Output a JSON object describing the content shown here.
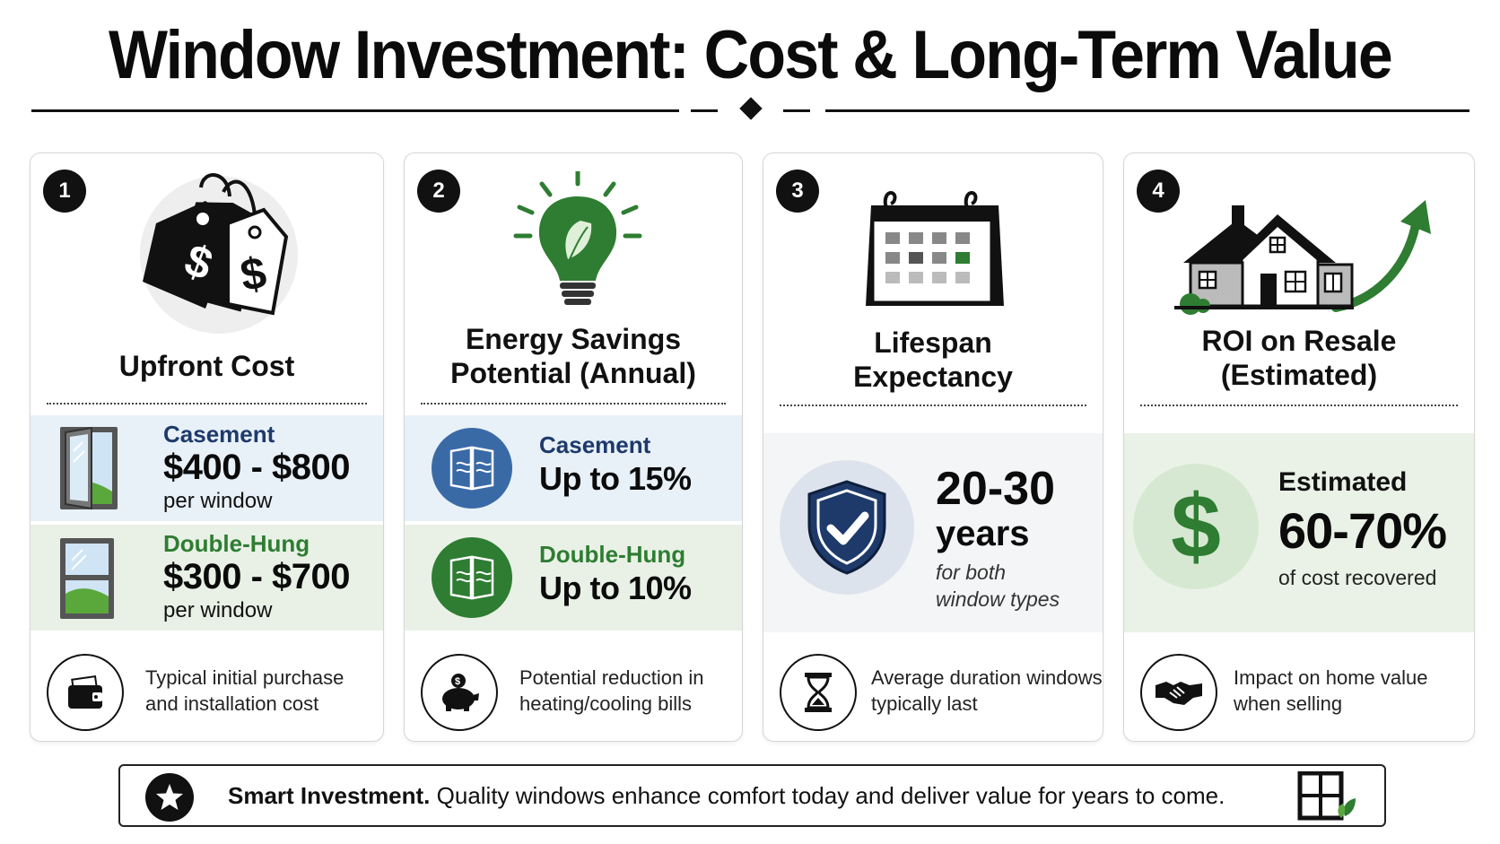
{
  "title": "Window Investment: Cost & Long-Term Value",
  "colors": {
    "green": "#2e7d32",
    "navy": "#1e3a6b",
    "blue": "#3a6aa6"
  },
  "cards": [
    {
      "number": "1",
      "icon": "price-tag-icon",
      "heading_line1": "Upfront Cost",
      "options": [
        {
          "name": "Casement",
          "value": "$400 - $800",
          "unit": "per window"
        },
        {
          "name": "Double-Hung",
          "value": "$300 - $700",
          "unit": "per window"
        }
      ],
      "footer_icon": "wallet-icon",
      "footer_line1": "Typical initial purchase",
      "footer_line2": "and installation cost"
    },
    {
      "number": "2",
      "icon": "lightbulb-leaf-icon",
      "heading_line1": "Energy Savings",
      "heading_line2": "Potential (Annual)",
      "options": [
        {
          "name": "Casement",
          "value": "Up to 15%"
        },
        {
          "name": "Double-Hung",
          "value": "Up to 10%"
        }
      ],
      "footer_icon": "piggy-bank-icon",
      "footer_line1": "Potential reduction in",
      "footer_line2": "heating/cooling bills"
    },
    {
      "number": "3",
      "icon": "calendar-icon",
      "heading_line1": "Lifespan",
      "heading_line2": "Expectancy",
      "value_line1": "20-30",
      "value_line2": "years",
      "note_line1": "for both",
      "note_line2": "window types",
      "footer_icon": "hourglass-icon",
      "footer_line1": "Average duration windows",
      "footer_line2": "typically last"
    },
    {
      "number": "4",
      "icon": "house-arrow-icon",
      "heading_line1": "ROI on Resale",
      "heading_line2": "(Estimated)",
      "label": "Estimated",
      "value": "60-70%",
      "note": "of cost recovered",
      "footer_icon": "handshake-icon",
      "footer_line1": "Impact on home value",
      "footer_line2": "when selling"
    }
  ],
  "bottom": {
    "bold": "Smart Investment.",
    "text": " Quality windows enhance comfort today and deliver value for years to come."
  }
}
